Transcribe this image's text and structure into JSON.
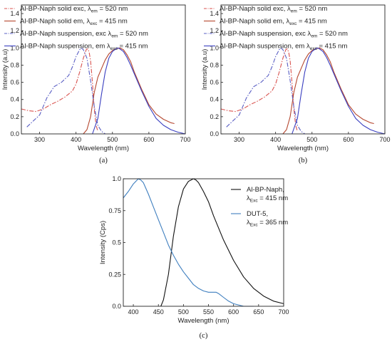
{
  "chart_data": [
    {
      "id": "a",
      "type": "line",
      "panel_label": "(a)",
      "xlabel": "Wavelength (nm)",
      "ylabel": "Intensity (a.u)",
      "xlim": [
        250,
        700
      ],
      "ylim": [
        0,
        1.5
      ],
      "xticks": [
        300,
        400,
        500,
        600,
        700
      ],
      "yticks": [
        0.0,
        0.2,
        0.4,
        0.6,
        0.8,
        1.0,
        1.2,
        1.4
      ],
      "grid": false,
      "legend_position": "top-left",
      "series": [
        {
          "name": "Al-BP-Naph solid exc, λem = 520 nm",
          "legend_main": "Al-BP-Naph solid exc, λ",
          "legend_sub": "em",
          "legend_tail": " = 520 nm",
          "color": "#d9534f",
          "dash": "dashdot",
          "x": [
            250,
            270,
            290,
            310,
            330,
            350,
            370,
            390,
            400,
            410,
            420,
            428,
            432,
            436,
            440,
            445,
            450,
            455,
            460
          ],
          "y": [
            0.29,
            0.27,
            0.26,
            0.29,
            0.34,
            0.38,
            0.43,
            0.5,
            0.58,
            0.72,
            0.88,
            0.98,
            0.99,
            0.95,
            0.85,
            0.6,
            0.3,
            0.1,
            0.03
          ]
        },
        {
          "name": "Al-BP-Naph solid em, λexc = 415 nm",
          "legend_main": "Al-BP-Naph solid em, λ",
          "legend_sub": "exc",
          "legend_tail": " = 415 nm",
          "color": "#b5472f",
          "dash": "solid",
          "x": [
            420,
            430,
            440,
            450,
            460,
            470,
            480,
            490,
            500,
            510,
            520,
            530,
            540,
            550,
            560,
            580,
            600,
            620,
            640,
            660,
            670
          ],
          "y": [
            0.0,
            0.05,
            0.2,
            0.48,
            0.66,
            0.76,
            0.86,
            0.93,
            0.97,
            0.99,
            1.0,
            0.98,
            0.92,
            0.84,
            0.72,
            0.52,
            0.34,
            0.23,
            0.17,
            0.13,
            0.12
          ]
        },
        {
          "name": "Al-BP-Naph suspension, exc λem = 520 nm",
          "legend_main": "Al-BP-Naph suspension, exc λ",
          "legend_sub": "em",
          "legend_tail": " = 520 nm",
          "color": "#5a5fc4",
          "dash": "dashdot",
          "x": [
            265,
            280,
            300,
            320,
            340,
            360,
            380,
            390,
            400,
            410,
            415,
            420,
            430,
            440,
            450,
            460,
            470,
            480
          ],
          "y": [
            0.08,
            0.14,
            0.22,
            0.42,
            0.55,
            0.6,
            0.68,
            0.78,
            0.9,
            0.98,
            1.0,
            0.98,
            0.88,
            0.62,
            0.32,
            0.1,
            0.03,
            0.0
          ]
        },
        {
          "name": "Al-BP-Naph suspension, em λexc = 415 nm",
          "legend_main": "Al-BP-Naph suspension, em λ",
          "legend_sub": "exc",
          "legend_tail": " = 415 nm",
          "color": "#3a3fc0",
          "dash": "solid",
          "x": [
            445,
            460,
            470,
            480,
            490,
            500,
            510,
            515,
            520,
            530,
            540,
            550,
            560,
            580,
            600,
            620,
            640,
            660,
            680,
            700
          ],
          "y": [
            0.0,
            0.18,
            0.46,
            0.72,
            0.88,
            0.96,
            0.99,
            1.0,
            0.99,
            0.96,
            0.89,
            0.8,
            0.7,
            0.5,
            0.32,
            0.18,
            0.1,
            0.05,
            0.02,
            0.0
          ]
        }
      ]
    },
    {
      "id": "b",
      "type": "line",
      "panel_label": "(b)",
      "xlabel": "Wavelength (nm)",
      "ylabel": "Intensity (a.u)",
      "xlim": [
        250,
        700
      ],
      "ylim": [
        0,
        1.5
      ],
      "xticks": [
        300,
        400,
        500,
        600,
        700
      ],
      "yticks": [
        0.0,
        0.2,
        0.4,
        0.6,
        0.8,
        1.0,
        1.2,
        1.4
      ],
      "grid": false,
      "legend_position": "top-left",
      "series": [
        {
          "name": "Al-BP-Naph solid exc, λem = 520 nm",
          "legend_main": "Al-BP-Naph solid exc, λ",
          "legend_sub": "em",
          "legend_tail": " = 520 nm",
          "color": "#d9534f",
          "dash": "dashdot",
          "x": [
            250,
            270,
            290,
            310,
            330,
            350,
            370,
            390,
            400,
            410,
            420,
            428,
            432,
            436,
            440,
            445,
            450,
            455,
            460
          ],
          "y": [
            0.29,
            0.27,
            0.26,
            0.29,
            0.34,
            0.38,
            0.43,
            0.5,
            0.58,
            0.72,
            0.88,
            0.98,
            0.99,
            0.95,
            0.85,
            0.6,
            0.3,
            0.1,
            0.03
          ]
        },
        {
          "name": "Al-BP-Naph solid em, λexc = 415 nm",
          "legend_main": "Al-BP-Naph solid em, λ",
          "legend_sub": "exc",
          "legend_tail": " = 415 nm",
          "color": "#b5472f",
          "dash": "solid",
          "x": [
            420,
            430,
            440,
            450,
            460,
            470,
            480,
            490,
            500,
            510,
            520,
            530,
            540,
            550,
            560,
            580,
            600,
            620,
            640,
            660,
            670
          ],
          "y": [
            0.0,
            0.05,
            0.2,
            0.48,
            0.66,
            0.76,
            0.86,
            0.93,
            0.97,
            0.99,
            1.0,
            0.98,
            0.92,
            0.84,
            0.72,
            0.52,
            0.34,
            0.23,
            0.17,
            0.13,
            0.12
          ]
        },
        {
          "name": "Al-BP-Naph suspension, exc λem = 520 nm",
          "legend_main": "Al-BP-Naph suspension, exc λ",
          "legend_sub": "em",
          "legend_tail": " = 520 nm",
          "color": "#5a5fc4",
          "dash": "dashdot",
          "x": [
            265,
            280,
            300,
            320,
            340,
            360,
            380,
            390,
            400,
            410,
            415,
            420,
            430,
            440,
            450,
            460,
            470,
            480
          ],
          "y": [
            0.08,
            0.14,
            0.22,
            0.42,
            0.55,
            0.6,
            0.68,
            0.78,
            0.9,
            0.98,
            1.0,
            0.98,
            0.88,
            0.62,
            0.32,
            0.1,
            0.03,
            0.0
          ]
        },
        {
          "name": "Al-BP-Naph suspension, em λexc = 415 nm",
          "legend_main": "Al-BP-Naph suspension, em λ",
          "legend_sub": "exc",
          "legend_tail": " = 415 nm",
          "color": "#3a3fc0",
          "dash": "solid",
          "x": [
            445,
            460,
            470,
            480,
            490,
            500,
            510,
            515,
            520,
            530,
            540,
            550,
            560,
            580,
            600,
            620,
            640,
            660,
            680,
            700
          ],
          "y": [
            0.0,
            0.18,
            0.46,
            0.72,
            0.88,
            0.96,
            0.99,
            1.0,
            0.99,
            0.96,
            0.89,
            0.8,
            0.7,
            0.5,
            0.32,
            0.18,
            0.1,
            0.05,
            0.02,
            0.0
          ]
        }
      ]
    },
    {
      "id": "c",
      "type": "line",
      "panel_label": "(c)",
      "xlabel": "Wavelength (nm)",
      "ylabel": "Intensity (Cps)",
      "xlim": [
        380,
        700
      ],
      "ylim": [
        0,
        1.0
      ],
      "xticks": [
        400,
        450,
        500,
        550,
        600,
        650,
        700
      ],
      "yticks": [
        0.0,
        0.25,
        0.5,
        0.75,
        1.0
      ],
      "ytick_labels": [
        "0.0",
        "0.25",
        "0.5",
        "0.75",
        "1.0"
      ],
      "grid": false,
      "legend_position": "top-right",
      "series": [
        {
          "name": "Al-BP-Naph, λExc = 415 nm",
          "legend_line1": "Al-BP-Naph,",
          "legend_main": "λ",
          "legend_sub": "Exc",
          "legend_tail": " = 415 nm",
          "color": "#111111",
          "dash": "solid",
          "x": [
            455,
            460,
            470,
            480,
            490,
            500,
            510,
            520,
            525,
            530,
            540,
            550,
            560,
            580,
            600,
            620,
            640,
            660,
            680,
            700
          ],
          "y": [
            0.0,
            0.05,
            0.25,
            0.55,
            0.78,
            0.92,
            0.98,
            1.0,
            0.99,
            0.97,
            0.9,
            0.82,
            0.71,
            0.52,
            0.36,
            0.23,
            0.14,
            0.08,
            0.04,
            0.02
          ]
        },
        {
          "name": "DUT-5, λExc = 365 nm",
          "legend_line1": "DUT-5,",
          "legend_main": "λ",
          "legend_sub": "Exc",
          "legend_tail": " = 365 nm",
          "color": "#3f7fbf",
          "dash": "solid",
          "x": [
            380,
            390,
            400,
            410,
            415,
            420,
            430,
            440,
            450,
            460,
            470,
            480,
            490,
            500,
            510,
            520,
            530,
            540,
            550,
            560,
            565,
            570,
            580,
            590,
            600,
            620,
            640
          ],
          "y": [
            0.85,
            0.9,
            0.96,
            1.0,
            0.99,
            0.97,
            0.88,
            0.78,
            0.68,
            0.58,
            0.48,
            0.4,
            0.33,
            0.27,
            0.22,
            0.17,
            0.14,
            0.12,
            0.11,
            0.11,
            0.11,
            0.1,
            0.07,
            0.04,
            0.02,
            0.0,
            0.0
          ]
        }
      ]
    }
  ]
}
